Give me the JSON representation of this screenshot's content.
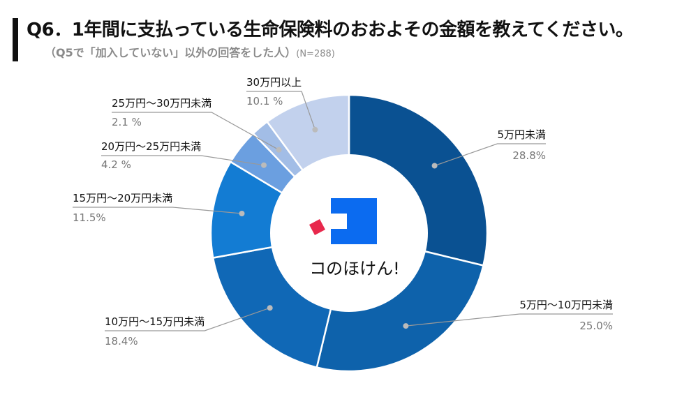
{
  "header": {
    "title": "Q6．1年間に支払っている生命保険料のおおよその金額を教えてください。",
    "subtitle": "（Q5で「加入していない」以外の回答をした人）",
    "sample": "(N=288)"
  },
  "brand": {
    "name": "コのほけん!"
  },
  "colors": {
    "brand_blue": "#0b6bf0",
    "brand_red": "#e8284c",
    "leader": "#999999"
  },
  "chart_data": {
    "type": "pie",
    "variant": "donut",
    "unit": "%",
    "series": [
      {
        "name": "5万円未満",
        "value": 28.8,
        "label": "28.8%",
        "color": "#0a5192"
      },
      {
        "name": "5万円〜10万円未満",
        "value": 25.0,
        "label": "25.0%",
        "color": "#0e62ab"
      },
      {
        "name": "10万円〜15万円未満",
        "value": 18.4,
        "label": "18.4%",
        "color": "#1068b6"
      },
      {
        "name": "15万円〜20万円未満",
        "value": 11.5,
        "label": "11.5%",
        "color": "#137cd3"
      },
      {
        "name": "20万円〜25万円未満",
        "value": 4.2,
        "label": "4.2 %",
        "color": "#6b9fe0"
      },
      {
        "name": "25万円〜30万円未満",
        "value": 2.1,
        "label": "2.1 %",
        "color": "#a2bde6"
      },
      {
        "name": "30万円以上",
        "value": 10.1,
        "label": "10.1 %",
        "color": "#c2d1ed"
      }
    ]
  }
}
